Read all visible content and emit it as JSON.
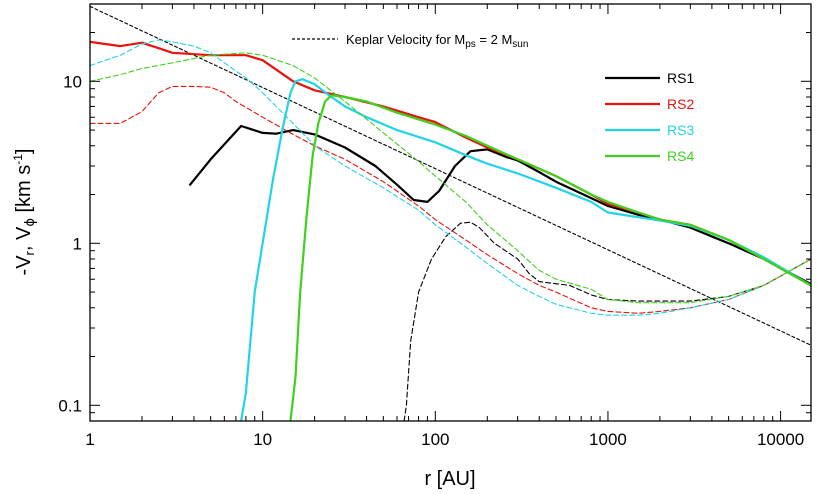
{
  "chart_data": {
    "type": "line",
    "title": "",
    "xlabel": "r [AU]",
    "ylabel": "-Vr, Vφ [km s-1]",
    "xscale": "log",
    "yscale": "log",
    "xlim": [
      1,
      15000
    ],
    "ylim": [
      0.08,
      30
    ],
    "grid": false,
    "x_tick_labels": [
      {
        "value": 1,
        "label": "1"
      },
      {
        "value": 10,
        "label": "10"
      },
      {
        "value": 100,
        "label": "100"
      },
      {
        "value": 1000,
        "label": "1000"
      },
      {
        "value": 10000,
        "label": "10000"
      }
    ],
    "y_tick_labels": [
      {
        "value": 0.1,
        "label": "0.1"
      },
      {
        "value": 1,
        "label": "1"
      },
      {
        "value": 10,
        "label": "10"
      }
    ],
    "ylabel_parts": {
      "base": "-V",
      "sub1": "r",
      "mid": ", V",
      "phi": "ϕ",
      "unit_open": " [km s",
      "sup": "-1",
      "unit_close": "]"
    },
    "keplar_label": {
      "text": "Keplar Velocity for M",
      "sub1": "ps",
      "mid": " = 2 M",
      "sub2": "sun"
    },
    "legend": [
      {
        "name": "RS1",
        "color": "#000000"
      },
      {
        "name": "RS2",
        "color": "#e8130f"
      },
      {
        "name": "RS3",
        "color": "#22d3e8"
      },
      {
        "name": "RS4",
        "color": "#3fd11d"
      }
    ],
    "series": [
      {
        "name": "Keplar Velocity for Mps = 2 Msun",
        "kind": "kepler",
        "color": "#000000",
        "dash": "dashed",
        "points": [
          [
            1,
            29
          ],
          [
            15000,
            0.235
          ]
        ]
      },
      {
        "name": "RS1",
        "kind": "solid",
        "color": "#000000",
        "points": [
          [
            3.8,
            2.3
          ],
          [
            5,
            3.3
          ],
          [
            7.5,
            5.3
          ],
          [
            10,
            4.8
          ],
          [
            12,
            4.75
          ],
          [
            15,
            5.0
          ],
          [
            20,
            4.7
          ],
          [
            30,
            3.9
          ],
          [
            45,
            3.0
          ],
          [
            60,
            2.3
          ],
          [
            75,
            1.85
          ],
          [
            90,
            1.8
          ],
          [
            105,
            2.1
          ],
          [
            130,
            3.0
          ],
          [
            160,
            3.7
          ],
          [
            200,
            3.8
          ],
          [
            260,
            3.4
          ],
          [
            300,
            3.25
          ],
          [
            400,
            2.75
          ],
          [
            500,
            2.4
          ],
          [
            800,
            1.9
          ],
          [
            1000,
            1.7
          ],
          [
            1500,
            1.5
          ],
          [
            2000,
            1.4
          ],
          [
            3000,
            1.25
          ],
          [
            5000,
            1.0
          ],
          [
            8000,
            0.8
          ],
          [
            15000,
            0.56
          ]
        ]
      },
      {
        "name": "RS1",
        "kind": "dashed",
        "color": "#000000",
        "points": [
          [
            66,
            0.08
          ],
          [
            68,
            0.1
          ],
          [
            72,
            0.25
          ],
          [
            80,
            0.5
          ],
          [
            95,
            0.8
          ],
          [
            115,
            1.1
          ],
          [
            140,
            1.33
          ],
          [
            160,
            1.35
          ],
          [
            180,
            1.25
          ],
          [
            220,
            1.0
          ],
          [
            300,
            0.8
          ],
          [
            350,
            0.65
          ],
          [
            400,
            0.58
          ],
          [
            600,
            0.55
          ],
          [
            800,
            0.48
          ],
          [
            1000,
            0.45
          ],
          [
            1500,
            0.44
          ],
          [
            3000,
            0.44
          ],
          [
            5000,
            0.47
          ],
          [
            8000,
            0.55
          ],
          [
            15000,
            0.8
          ]
        ]
      },
      {
        "name": "RS2",
        "kind": "solid",
        "color": "#e8130f",
        "points": [
          [
            1,
            17.5
          ],
          [
            1.5,
            16.5
          ],
          [
            2,
            17.3
          ],
          [
            2.5,
            16
          ],
          [
            3,
            15
          ],
          [
            5,
            14.5
          ],
          [
            8,
            14.5
          ],
          [
            10,
            13.5
          ],
          [
            15,
            10
          ],
          [
            20,
            8.8
          ],
          [
            30,
            8.0
          ],
          [
            50,
            7.0
          ],
          [
            80,
            6.0
          ],
          [
            100,
            5.6
          ],
          [
            150,
            4.5
          ],
          [
            200,
            3.9
          ],
          [
            300,
            3.3
          ],
          [
            500,
            2.6
          ],
          [
            800,
            2.0
          ],
          [
            1000,
            1.75
          ],
          [
            1500,
            1.55
          ],
          [
            2000,
            1.4
          ],
          [
            3000,
            1.3
          ],
          [
            5000,
            1.05
          ],
          [
            8000,
            0.8
          ],
          [
            15000,
            0.55
          ]
        ]
      },
      {
        "name": "RS2",
        "kind": "dashed",
        "color": "#e8130f",
        "points": [
          [
            1,
            5.5
          ],
          [
            1.5,
            5.5
          ],
          [
            2,
            6.5
          ],
          [
            2.5,
            8.5
          ],
          [
            3,
            9.3
          ],
          [
            4,
            9.3
          ],
          [
            5,
            9.2
          ],
          [
            6,
            8.5
          ],
          [
            7,
            7.5
          ],
          [
            10,
            6.0
          ],
          [
            15,
            4.7
          ],
          [
            20,
            4.0
          ],
          [
            30,
            3.3
          ],
          [
            50,
            2.4
          ],
          [
            80,
            1.7
          ],
          [
            100,
            1.4
          ],
          [
            150,
            1.05
          ],
          [
            200,
            0.85
          ],
          [
            300,
            0.65
          ],
          [
            400,
            0.55
          ],
          [
            500,
            0.5
          ],
          [
            800,
            0.4
          ],
          [
            1000,
            0.38
          ],
          [
            1500,
            0.37
          ],
          [
            2000,
            0.38
          ],
          [
            3000,
            0.4
          ],
          [
            5000,
            0.45
          ],
          [
            8000,
            0.55
          ],
          [
            15000,
            0.8
          ]
        ]
      },
      {
        "name": "RS3",
        "kind": "solid",
        "color": "#22d3e8",
        "points": [
          [
            7.5,
            0.08
          ],
          [
            8,
            0.12
          ],
          [
            9,
            0.5
          ],
          [
            10,
            1.0
          ],
          [
            11.5,
            2.5
          ],
          [
            13,
            5.0
          ],
          [
            14.5,
            8.5
          ],
          [
            15.5,
            10.0
          ],
          [
            17,
            10.3
          ],
          [
            20,
            9.6
          ],
          [
            25,
            8.0
          ],
          [
            30,
            7.0
          ],
          [
            40,
            6.0
          ],
          [
            60,
            5.0
          ],
          [
            100,
            4.2
          ],
          [
            150,
            3.5
          ],
          [
            200,
            3.1
          ],
          [
            300,
            2.7
          ],
          [
            500,
            2.2
          ],
          [
            800,
            1.8
          ],
          [
            1000,
            1.55
          ],
          [
            1500,
            1.45
          ],
          [
            2000,
            1.38
          ],
          [
            3000,
            1.28
          ],
          [
            5000,
            1.05
          ],
          [
            8000,
            0.82
          ],
          [
            15000,
            0.55
          ]
        ]
      },
      {
        "name": "RS3",
        "kind": "dashed",
        "color": "#22d3e8",
        "points": [
          [
            1,
            12.5
          ],
          [
            1.5,
            14.5
          ],
          [
            2,
            17
          ],
          [
            2.5,
            18
          ],
          [
            3,
            17.5
          ],
          [
            4,
            16.5
          ],
          [
            5,
            15
          ],
          [
            6,
            13
          ],
          [
            8,
            10.5
          ],
          [
            10,
            8.5
          ],
          [
            15,
            5.5
          ],
          [
            20,
            4.0
          ],
          [
            30,
            3.0
          ],
          [
            50,
            2.2
          ],
          [
            80,
            1.6
          ],
          [
            100,
            1.3
          ],
          [
            150,
            0.95
          ],
          [
            200,
            0.75
          ],
          [
            300,
            0.55
          ],
          [
            400,
            0.47
          ],
          [
            500,
            0.42
          ],
          [
            800,
            0.37
          ],
          [
            1000,
            0.36
          ],
          [
            1500,
            0.36
          ],
          [
            2000,
            0.37
          ],
          [
            3000,
            0.4
          ],
          [
            5000,
            0.45
          ],
          [
            8000,
            0.55
          ],
          [
            15000,
            0.8
          ]
        ]
      },
      {
        "name": "RS4",
        "kind": "solid",
        "color": "#3fd11d",
        "points": [
          [
            14.5,
            0.08
          ],
          [
            15.5,
            0.15
          ],
          [
            16.5,
            0.5
          ],
          [
            18,
            1.5
          ],
          [
            19.5,
            3.5
          ],
          [
            21,
            5.5
          ],
          [
            23,
            7.5
          ],
          [
            25,
            8.2
          ],
          [
            30,
            8.0
          ],
          [
            40,
            7.5
          ],
          [
            60,
            6.4
          ],
          [
            100,
            5.4
          ],
          [
            150,
            4.6
          ],
          [
            200,
            4.0
          ],
          [
            300,
            3.3
          ],
          [
            500,
            2.6
          ],
          [
            800,
            2.0
          ],
          [
            1000,
            1.8
          ],
          [
            1500,
            1.55
          ],
          [
            2000,
            1.4
          ],
          [
            3000,
            1.3
          ],
          [
            5000,
            1.05
          ],
          [
            8000,
            0.8
          ],
          [
            15000,
            0.55
          ]
        ]
      },
      {
        "name": "RS4",
        "kind": "dashed",
        "color": "#3fd11d",
        "points": [
          [
            1,
            10
          ],
          [
            1.5,
            11
          ],
          [
            2,
            12
          ],
          [
            3,
            13
          ],
          [
            5,
            14.5
          ],
          [
            8,
            15
          ],
          [
            10,
            14.5
          ],
          [
            15,
            12.5
          ],
          [
            20,
            10.5
          ],
          [
            30,
            7.5
          ],
          [
            50,
            4.8
          ],
          [
            80,
            3.2
          ],
          [
            100,
            2.6
          ],
          [
            150,
            1.8
          ],
          [
            200,
            1.3
          ],
          [
            300,
            0.9
          ],
          [
            400,
            0.68
          ],
          [
            500,
            0.6
          ],
          [
            800,
            0.52
          ],
          [
            1000,
            0.45
          ],
          [
            1500,
            0.43
          ],
          [
            3000,
            0.43
          ],
          [
            5000,
            0.47
          ],
          [
            8000,
            0.55
          ],
          [
            15000,
            0.8
          ]
        ]
      }
    ]
  }
}
